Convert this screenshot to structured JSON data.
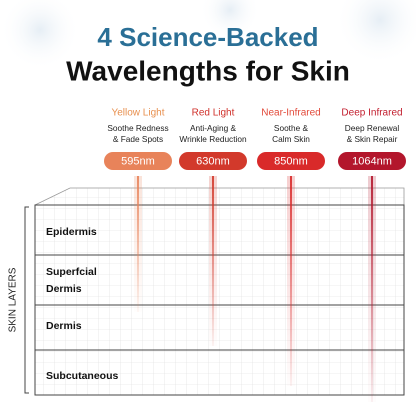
{
  "header": {
    "title_line1": "4 Science-Backed",
    "title_line2": "Wavelengths for Skin"
  },
  "wavelengths": [
    {
      "name": "Yellow Light",
      "description": [
        "Soothe Redness",
        "& Fade Spots"
      ],
      "wavelength": "595nm"
    },
    {
      "name": "Red Light",
      "description": [
        "Anti-Aging &",
        "Wrinkle Reduction"
      ],
      "wavelength": "630nm"
    },
    {
      "name": "Near-Infrared",
      "description": [
        "Soothe &",
        "Calm Skin"
      ],
      "wavelength": "850nm"
    },
    {
      "name": "Deep Infrared",
      "description": [
        "Deep Renewal",
        "& Skin Repair"
      ],
      "wavelength": "1064nm"
    }
  ],
  "skin_layers": {
    "label": "SKIN LAYERS",
    "layers": [
      [
        "Epidermis"
      ],
      [
        "Superfcial",
        "Dermis"
      ],
      [
        "Dermis"
      ],
      [
        "Subcutaneous"
      ]
    ]
  }
}
